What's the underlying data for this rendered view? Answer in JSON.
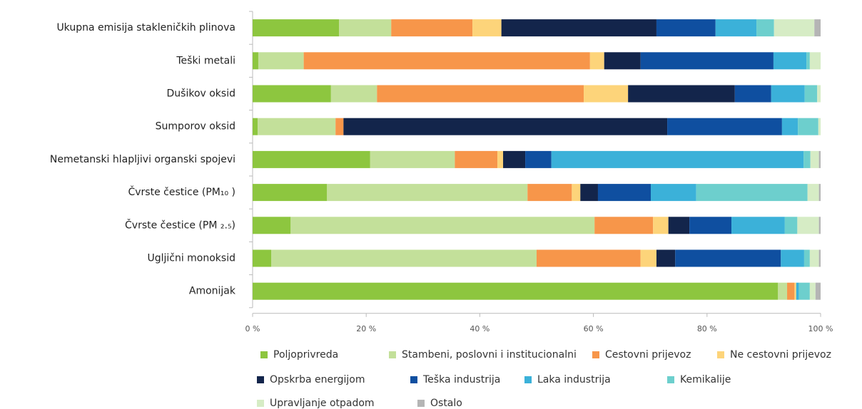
{
  "chart_data": {
    "type": "stacked_bar_horizontal",
    "categories": [
      "Ukupna emisija stakleničkih plinova",
      "Teški metali",
      "Dušikov oksid",
      "Sumporov oksid",
      "Nemetanski hlapljivi organski spojevi",
      "Čvrste čestice (PM₁₀ )",
      "Čvrste čestice (PM ₂.₅)",
      "Ugljični monoksid",
      "Amonijak"
    ],
    "series": [
      {
        "name": "Poljoprivreda",
        "color": "#8dc63f",
        "values": [
          15.2,
          1.0,
          13.8,
          0.9,
          20.7,
          13.1,
          6.7,
          3.3,
          92.5
        ]
      },
      {
        "name": "Stambeni, poslovni i institucionalni",
        "color": "#c3e09a",
        "values": [
          9.2,
          8.0,
          8.1,
          13.7,
          14.9,
          35.3,
          53.5,
          46.7,
          1.6
        ]
      },
      {
        "name": "Cestovni prijevoz",
        "color": "#f7964a",
        "values": [
          14.3,
          50.4,
          36.4,
          1.4,
          7.5,
          7.8,
          10.3,
          18.3,
          1.3
        ]
      },
      {
        "name": "Ne cestovni prijevoz",
        "color": "#fdd47a",
        "values": [
          5.1,
          2.5,
          7.8,
          0,
          1.0,
          1.5,
          2.7,
          2.8,
          0.3
        ]
      },
      {
        "name": "Opskrba energijom",
        "color": "#13254b",
        "values": [
          27.3,
          6.4,
          18.8,
          57.0,
          3.9,
          3.1,
          3.7,
          3.3,
          0
        ]
      },
      {
        "name": "Teška industrija",
        "color": "#0f4fa0",
        "values": [
          10.4,
          23.4,
          6.4,
          20.2,
          4.6,
          9.3,
          7.4,
          18.6,
          0
        ]
      },
      {
        "name": "Laka industrija",
        "color": "#3bb1d9",
        "values": [
          7.2,
          5.8,
          5.9,
          2.8,
          44.4,
          8.0,
          9.4,
          4.1,
          0.5
        ]
      },
      {
        "name": "Kemikalije",
        "color": "#6dcfcd",
        "values": [
          3.1,
          0.6,
          2.2,
          3.6,
          1.2,
          19.6,
          2.2,
          1.0,
          1.9
        ]
      },
      {
        "name": "Upravljanje otpadom",
        "color": "#d6ecc5",
        "values": [
          7.1,
          1.9,
          0.6,
          0.4,
          1.5,
          2.0,
          3.8,
          1.6,
          1.0
        ]
      },
      {
        "name": "Ostalo",
        "color": "#b5b5b5",
        "values": [
          1.1,
          0,
          0,
          0,
          0.3,
          0.3,
          0.3,
          0.3,
          0.9
        ]
      }
    ],
    "xlim": [
      0,
      100
    ],
    "xticks": [
      {
        "value": 0,
        "label": "0 %"
      },
      {
        "value": 20,
        "label": "20 %"
      },
      {
        "value": 40,
        "label": "40 %"
      },
      {
        "value": 60,
        "label": "60 %"
      },
      {
        "value": 80,
        "label": "80 %"
      },
      {
        "value": 100,
        "label": "100 %"
      }
    ]
  }
}
